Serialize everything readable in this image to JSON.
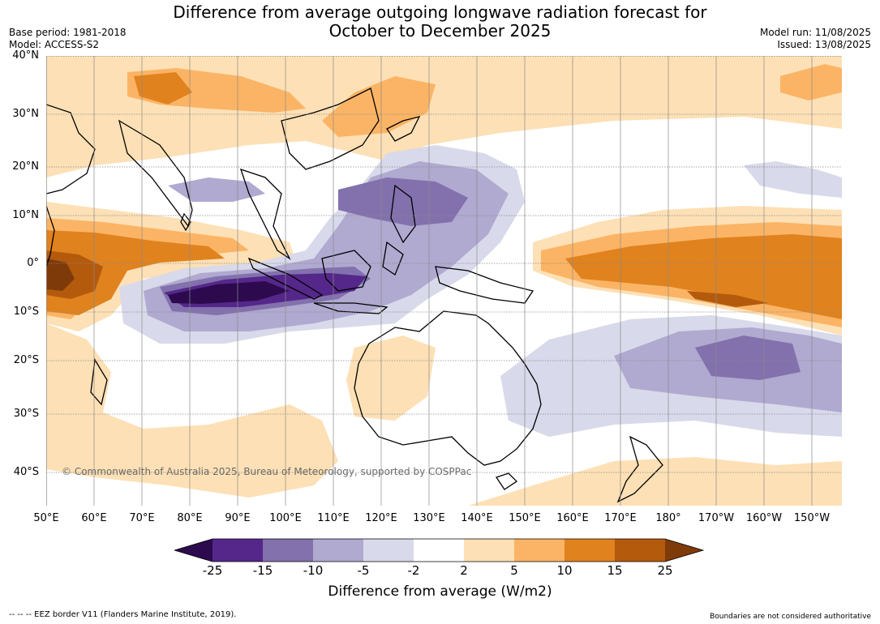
{
  "title_line1": "Difference from average outgoing longwave radiation forecast for",
  "title_line2": "October to December 2025",
  "base_period": "Base period: 1981-2018",
  "model": "Model: ACCESS-S2",
  "model_run": "Model run: 11/08/2025",
  "issued": "Issued: 13/08/2025",
  "copyright": "© Commonwealth of Australia 2025, Bureau of Meteorology, supported by COSPPac",
  "lat_labels": [
    "40°N",
    "30°N",
    "20°N",
    "10°N",
    "0°",
    "10°S",
    "20°S",
    "30°S",
    "40°S"
  ],
  "lon_labels": [
    "50°E",
    "60°E",
    "70°E",
    "80°E",
    "90°E",
    "100°E",
    "110°E",
    "120°E",
    "130°E",
    "140°E",
    "150°E",
    "160°E",
    "170°E",
    "180°",
    "170°W",
    "160°W",
    "150°W"
  ],
  "colorbar": {
    "ticks": [
      "-25",
      "-15",
      "-10",
      "-5",
      "-2",
      "2",
      "5",
      "10",
      "15",
      "25"
    ],
    "colors": [
      "#2d0a4e",
      "#55278a",
      "#8271ad",
      "#b0a9d0",
      "#d8d9ea",
      "#ffffff",
      "#fde0b5",
      "#fbb465",
      "#e0821e",
      "#b45a0d",
      "#7f3a0a"
    ],
    "title": "Difference from average (W/m2)"
  },
  "footer_left": "--  --  -- EEZ border V11 (Flanders Marine Institute, 2019).",
  "footer_right": "Boundaries are not considered authoritative"
}
